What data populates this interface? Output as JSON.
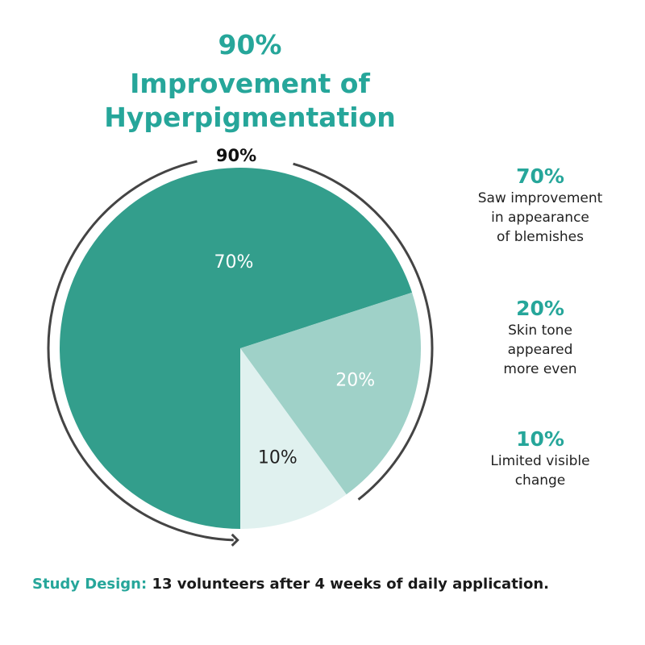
{
  "header": {
    "percent": "90%",
    "line1": "Improvement of",
    "line2": "Hyperpigmentation"
  },
  "chart_data": {
    "type": "pie",
    "title": "90% Improvement of Hyperpigmentation",
    "arc_label": "90%",
    "slices": [
      {
        "label": "70%",
        "value": 70,
        "color": "#339e8c"
      },
      {
        "label": "20%",
        "value": 20,
        "color": "#9fd1c8"
      },
      {
        "label": "10%",
        "value": 10,
        "color": "#e0f1ef"
      }
    ]
  },
  "legend": [
    {
      "percent": "70%",
      "description": [
        "Saw improvement",
        "in appearance",
        "of blemishes"
      ]
    },
    {
      "percent": "20%",
      "description": [
        "Skin tone",
        "appeared",
        "more even"
      ]
    },
    {
      "percent": "10%",
      "description": [
        "Limited visible",
        "change"
      ]
    }
  ],
  "footer": {
    "label": "Study Design:",
    "text": " 13 volunteers after 4 weeks of daily application."
  },
  "colors": {
    "accent": "#26a69a",
    "arc": "#444444",
    "slice_label": "#ffffff",
    "slice_label_light": "#222222"
  }
}
